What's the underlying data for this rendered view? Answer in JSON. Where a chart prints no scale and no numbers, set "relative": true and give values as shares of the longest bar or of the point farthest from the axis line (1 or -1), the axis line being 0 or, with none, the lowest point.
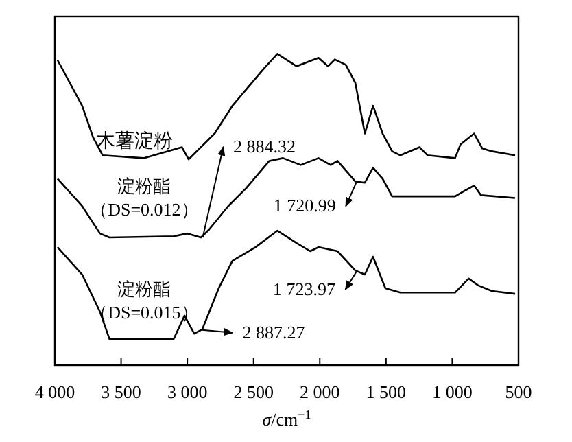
{
  "chart_data": {
    "type": "line",
    "relative": true,
    "xlabel": "σ/cm$^{−1}$",
    "xlim": [
      4000,
      500
    ],
    "xticks": [
      {
        "value": 4000,
        "label": "4 000"
      },
      {
        "value": 3500,
        "label": "3 500"
      },
      {
        "value": 3000,
        "label": "3 000"
      },
      {
        "value": 2500,
        "label": "2 500"
      },
      {
        "value": 2000,
        "label": "2 000"
      },
      {
        "value": 1500,
        "label": "1 500"
      },
      {
        "value": 1000,
        "label": "1 000"
      },
      {
        "value": 500,
        "label": "500"
      }
    ],
    "grid": false,
    "tick_labels": "x",
    "line_style": "solid",
    "marker": "none",
    "series": [
      {
        "name": "木薯淀粉",
        "color": "#000000",
        "x": [
          3980,
          3794,
          3711,
          3639,
          3330,
          3041,
          2990,
          2794,
          2660,
          2423,
          2320,
          2175,
          2010,
          1938,
          1887,
          1804,
          1732,
          1660,
          1598,
          1526,
          1454,
          1392,
          1247,
          1186,
          979,
          938,
          835,
          773,
          701,
          526
        ],
        "values": [
          0.98,
          0.833,
          0.731,
          0.674,
          0.665,
          0.7,
          0.661,
          0.744,
          0.833,
          0.952,
          1.0,
          0.96,
          0.987,
          0.96,
          0.982,
          0.965,
          0.907,
          0.744,
          0.833,
          0.744,
          0.687,
          0.674,
          0.7,
          0.674,
          0.665,
          0.709,
          0.744,
          0.696,
          0.687,
          0.674
        ]
      },
      {
        "name": "淀粉酯（DS=0.012）",
        "color": "#000000",
        "x": [
          3980,
          3794,
          3660,
          3588,
          3103,
          3000,
          2897,
          2835,
          2691,
          2557,
          2381,
          2278,
          2144,
          2010,
          1918,
          1866,
          1732,
          1660,
          1598,
          1526,
          1454,
          1247,
          979,
          928,
          835,
          784,
          526
        ],
        "values": [
          0.599,
          0.511,
          0.423,
          0.41,
          0.414,
          0.423,
          0.41,
          0.436,
          0.511,
          0.568,
          0.656,
          0.665,
          0.643,
          0.665,
          0.643,
          0.656,
          0.59,
          0.586,
          0.634,
          0.599,
          0.542,
          0.542,
          0.542,
          0.555,
          0.577,
          0.546,
          0.537
        ]
      },
      {
        "name": "淀粉酯（DS=0.015）",
        "color": "#000000",
        "x": [
          3980,
          3794,
          3660,
          3588,
          3103,
          3021,
          2948,
          2887,
          2763,
          2660,
          2485,
          2320,
          2175,
          2072,
          2010,
          1866,
          1732,
          1660,
          1598,
          1505,
          1392,
          1186,
          979,
          876,
          804,
          701,
          526
        ],
        "values": [
          0.379,
          0.291,
          0.172,
          0.084,
          0.084,
          0.159,
          0.101,
          0.115,
          0.247,
          0.335,
          0.379,
          0.432,
          0.392,
          0.366,
          0.379,
          0.366,
          0.304,
          0.291,
          0.348,
          0.247,
          0.233,
          0.233,
          0.233,
          0.278,
          0.256,
          0.238,
          0.229
        ]
      }
    ],
    "annotations": [
      {
        "text": "2 884.32",
        "x": 2884,
        "y": 0.41
      },
      {
        "text": "1 720.99",
        "x": 1721,
        "y": 0.59
      },
      {
        "text": "1 723.97",
        "x": 1724,
        "y": 0.3
      },
      {
        "text": "2 887.27",
        "x": 2887,
        "y": 0.113
      }
    ]
  }
}
